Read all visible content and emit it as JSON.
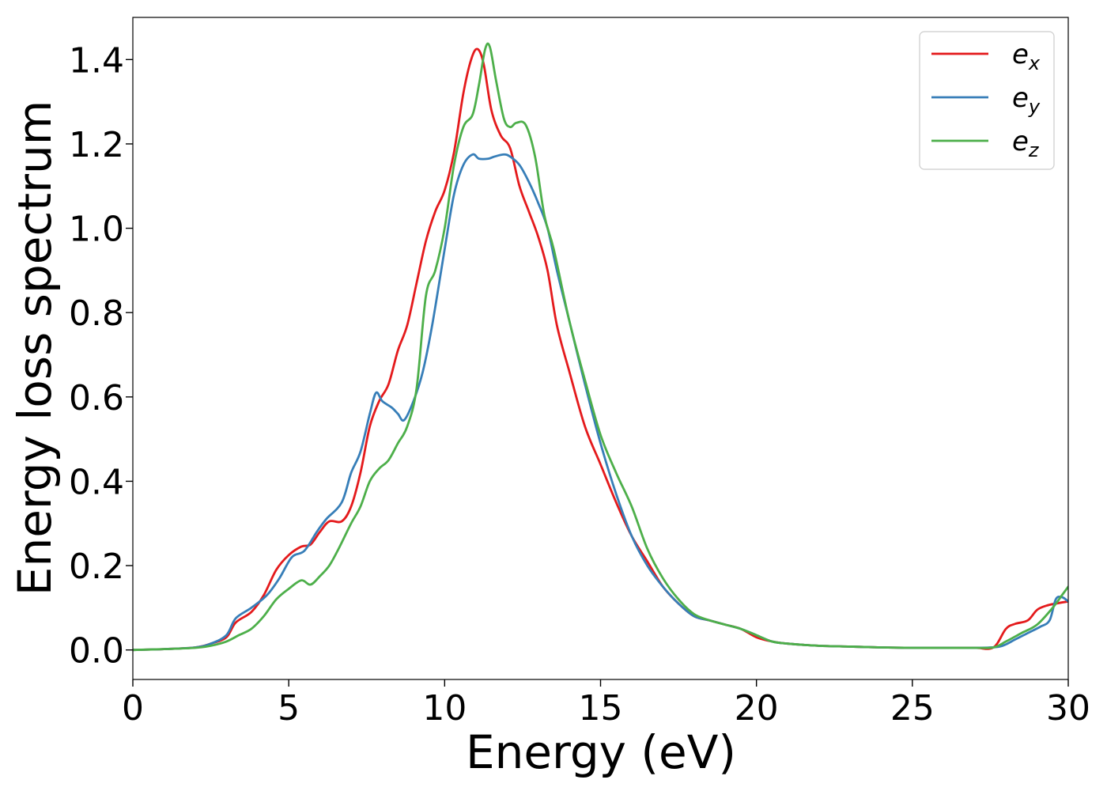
{
  "chart_data": {
    "type": "line",
    "xlabel": "Energy (eV)",
    "ylabel": "Energy loss spectrum",
    "xlim": [
      0,
      30
    ],
    "ylim": [
      -0.07,
      1.5
    ],
    "xticks": [
      0,
      5,
      10,
      15,
      20,
      25,
      30
    ],
    "yticks": [
      0.0,
      0.2,
      0.4,
      0.6,
      0.8,
      1.0,
      1.2,
      1.4
    ],
    "grid": false,
    "legend_position": "top-right",
    "series": [
      {
        "name": "e_x",
        "base": "e",
        "sub": "x",
        "color": "#e41a1c",
        "x": [
          0,
          1,
          2,
          2.5,
          3,
          3.3,
          3.8,
          4.2,
          4.6,
          5,
          5.4,
          5.7,
          6,
          6.3,
          6.7,
          7,
          7.3,
          7.6,
          7.9,
          8.2,
          8.5,
          8.8,
          9.1,
          9.4,
          9.7,
          10,
          10.3,
          10.6,
          10.85,
          11.05,
          11.25,
          11.5,
          11.8,
          12.1,
          12.4,
          12.7,
          13,
          13.3,
          13.6,
          14,
          14.5,
          15,
          15.5,
          16,
          16.5,
          17,
          17.5,
          18,
          18.5,
          19,
          19.5,
          20,
          20.5,
          21,
          22,
          23,
          24,
          25,
          26,
          27,
          27.6,
          28,
          28.3,
          28.7,
          29,
          29.3,
          29.6,
          30
        ],
        "y": [
          0.0,
          0.002,
          0.006,
          0.015,
          0.03,
          0.065,
          0.09,
          0.13,
          0.19,
          0.225,
          0.245,
          0.25,
          0.28,
          0.305,
          0.305,
          0.34,
          0.42,
          0.53,
          0.59,
          0.63,
          0.71,
          0.77,
          0.87,
          0.97,
          1.04,
          1.09,
          1.18,
          1.32,
          1.4,
          1.425,
          1.39,
          1.28,
          1.22,
          1.19,
          1.1,
          1.04,
          0.98,
          0.9,
          0.77,
          0.66,
          0.53,
          0.44,
          0.35,
          0.27,
          0.21,
          0.15,
          0.11,
          0.08,
          0.07,
          0.06,
          0.05,
          0.03,
          0.02,
          0.015,
          0.01,
          0.008,
          0.006,
          0.005,
          0.005,
          0.005,
          0.006,
          0.05,
          0.062,
          0.07,
          0.095,
          0.105,
          0.11,
          0.115
        ]
      },
      {
        "name": "e_y",
        "base": "e",
        "sub": "y",
        "color": "#377eb8",
        "x": [
          0,
          1,
          2,
          2.5,
          3,
          3.3,
          3.8,
          4.3,
          4.7,
          5.1,
          5.5,
          5.9,
          6.2,
          6.7,
          7,
          7.3,
          7.6,
          7.8,
          8,
          8.3,
          8.5,
          8.7,
          9,
          9.3,
          9.6,
          10,
          10.3,
          10.6,
          10.9,
          11.1,
          11.4,
          11.6,
          11.9,
          12.1,
          12.4,
          12.7,
          13,
          13.3,
          13.6,
          14,
          14.5,
          15,
          15.5,
          16,
          16.5,
          17,
          17.5,
          18,
          18.5,
          19,
          19.5,
          20,
          20.5,
          21,
          22,
          23,
          24,
          25,
          26,
          27,
          27.8,
          28.3,
          28.7,
          29.1,
          29.4,
          29.6,
          29.8,
          30
        ],
        "y": [
          0.0,
          0.002,
          0.006,
          0.015,
          0.035,
          0.075,
          0.1,
          0.13,
          0.17,
          0.22,
          0.235,
          0.28,
          0.31,
          0.35,
          0.42,
          0.47,
          0.56,
          0.61,
          0.59,
          0.575,
          0.56,
          0.545,
          0.59,
          0.66,
          0.77,
          0.95,
          1.08,
          1.15,
          1.175,
          1.165,
          1.165,
          1.17,
          1.175,
          1.17,
          1.15,
          1.11,
          1.06,
          1.0,
          0.9,
          0.78,
          0.63,
          0.49,
          0.37,
          0.27,
          0.2,
          0.15,
          0.11,
          0.08,
          0.07,
          0.06,
          0.05,
          0.035,
          0.02,
          0.015,
          0.01,
          0.008,
          0.006,
          0.005,
          0.005,
          0.005,
          0.008,
          0.025,
          0.04,
          0.055,
          0.07,
          0.12,
          0.125,
          0.115
        ]
      },
      {
        "name": "e_z",
        "base": "e",
        "sub": "z",
        "color": "#4daf4a",
        "x": [
          0,
          1,
          2,
          2.5,
          3,
          3.4,
          3.8,
          4.2,
          4.6,
          5,
          5.4,
          5.7,
          6,
          6.3,
          6.6,
          7,
          7.3,
          7.6,
          7.9,
          8.2,
          8.5,
          8.8,
          9.1,
          9.4,
          9.7,
          10,
          10.3,
          10.6,
          10.9,
          11.1,
          11.3,
          11.45,
          11.65,
          11.9,
          12.1,
          12.3,
          12.6,
          12.9,
          13.2,
          13.5,
          14,
          14.5,
          15,
          15.5,
          16,
          16.5,
          17,
          17.5,
          18,
          18.5,
          19,
          19.5,
          20,
          20.5,
          21,
          22,
          23,
          24,
          25,
          26,
          27,
          27.6,
          28,
          28.5,
          29,
          29.5,
          29.8,
          30
        ],
        "y": [
          0.0,
          0.002,
          0.005,
          0.01,
          0.02,
          0.035,
          0.05,
          0.08,
          0.12,
          0.145,
          0.165,
          0.155,
          0.175,
          0.2,
          0.24,
          0.3,
          0.34,
          0.4,
          0.43,
          0.45,
          0.49,
          0.53,
          0.62,
          0.84,
          0.9,
          1.0,
          1.15,
          1.24,
          1.27,
          1.34,
          1.425,
          1.43,
          1.35,
          1.26,
          1.24,
          1.25,
          1.245,
          1.17,
          1.03,
          0.95,
          0.78,
          0.64,
          0.51,
          0.42,
          0.34,
          0.24,
          0.17,
          0.12,
          0.085,
          0.07,
          0.06,
          0.05,
          0.035,
          0.02,
          0.015,
          0.01,
          0.008,
          0.006,
          0.005,
          0.005,
          0.005,
          0.006,
          0.02,
          0.04,
          0.06,
          0.1,
          0.13,
          0.15
        ]
      }
    ]
  }
}
